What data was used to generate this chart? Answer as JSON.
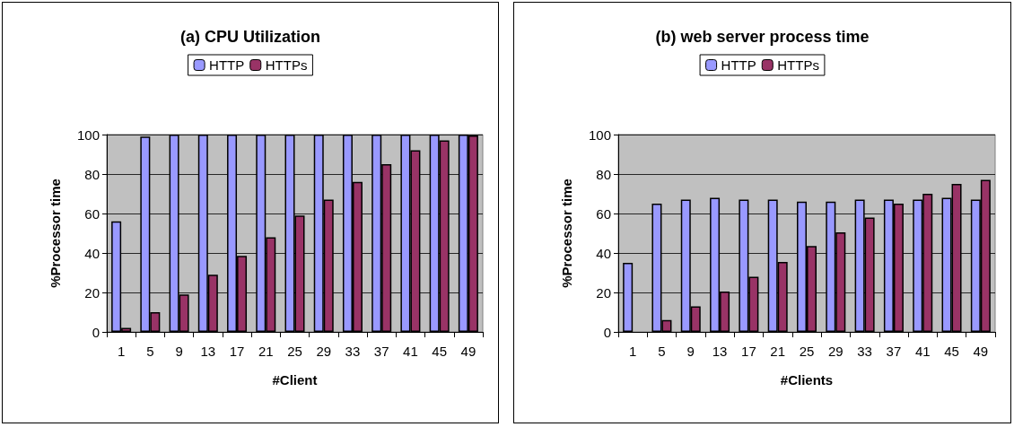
{
  "chart_data": [
    {
      "type": "bar",
      "title": "(a) CPU Utilization",
      "xlabel": "#Client",
      "ylabel": "%Processor time",
      "categories": [
        "1",
        "5",
        "9",
        "13",
        "17",
        "21",
        "25",
        "29",
        "33",
        "37",
        "41",
        "45",
        "49"
      ],
      "series": [
        {
          "name": "HTTP",
          "color": "#9999ff",
          "values": [
            56,
            99,
            100,
            100,
            100,
            100,
            100,
            100,
            100,
            100,
            100,
            100,
            100
          ]
        },
        {
          "name": "HTTPs",
          "color": "#993366",
          "values": [
            2,
            10,
            19,
            29,
            38.5,
            48,
            59,
            67,
            76,
            85,
            92,
            97,
            99.5
          ]
        }
      ],
      "ylim": [
        0,
        100
      ],
      "yticks": [
        0,
        20,
        40,
        60,
        80,
        100
      ],
      "grid": "y",
      "legend": "top"
    },
    {
      "type": "bar",
      "title": "(b) web server process time",
      "xlabel": "#Clients",
      "ylabel": "%Processor time",
      "categories": [
        "1",
        "5",
        "9",
        "13",
        "17",
        "21",
        "25",
        "29",
        "33",
        "37",
        "41",
        "45",
        "49"
      ],
      "series": [
        {
          "name": "HTTP",
          "color": "#9999ff",
          "values": [
            35,
            65,
            67,
            68,
            67,
            67,
            66,
            66,
            67,
            67,
            67,
            68,
            67
          ]
        },
        {
          "name": "HTTPs",
          "color": "#993366",
          "values": [
            0,
            6,
            13,
            20.5,
            28,
            35.5,
            43.5,
            50.5,
            58,
            65,
            70,
            75,
            77
          ]
        }
      ],
      "ylim": [
        0,
        100
      ],
      "yticks": [
        0,
        20,
        40,
        60,
        80,
        100
      ],
      "grid": "y",
      "legend": "top"
    }
  ]
}
